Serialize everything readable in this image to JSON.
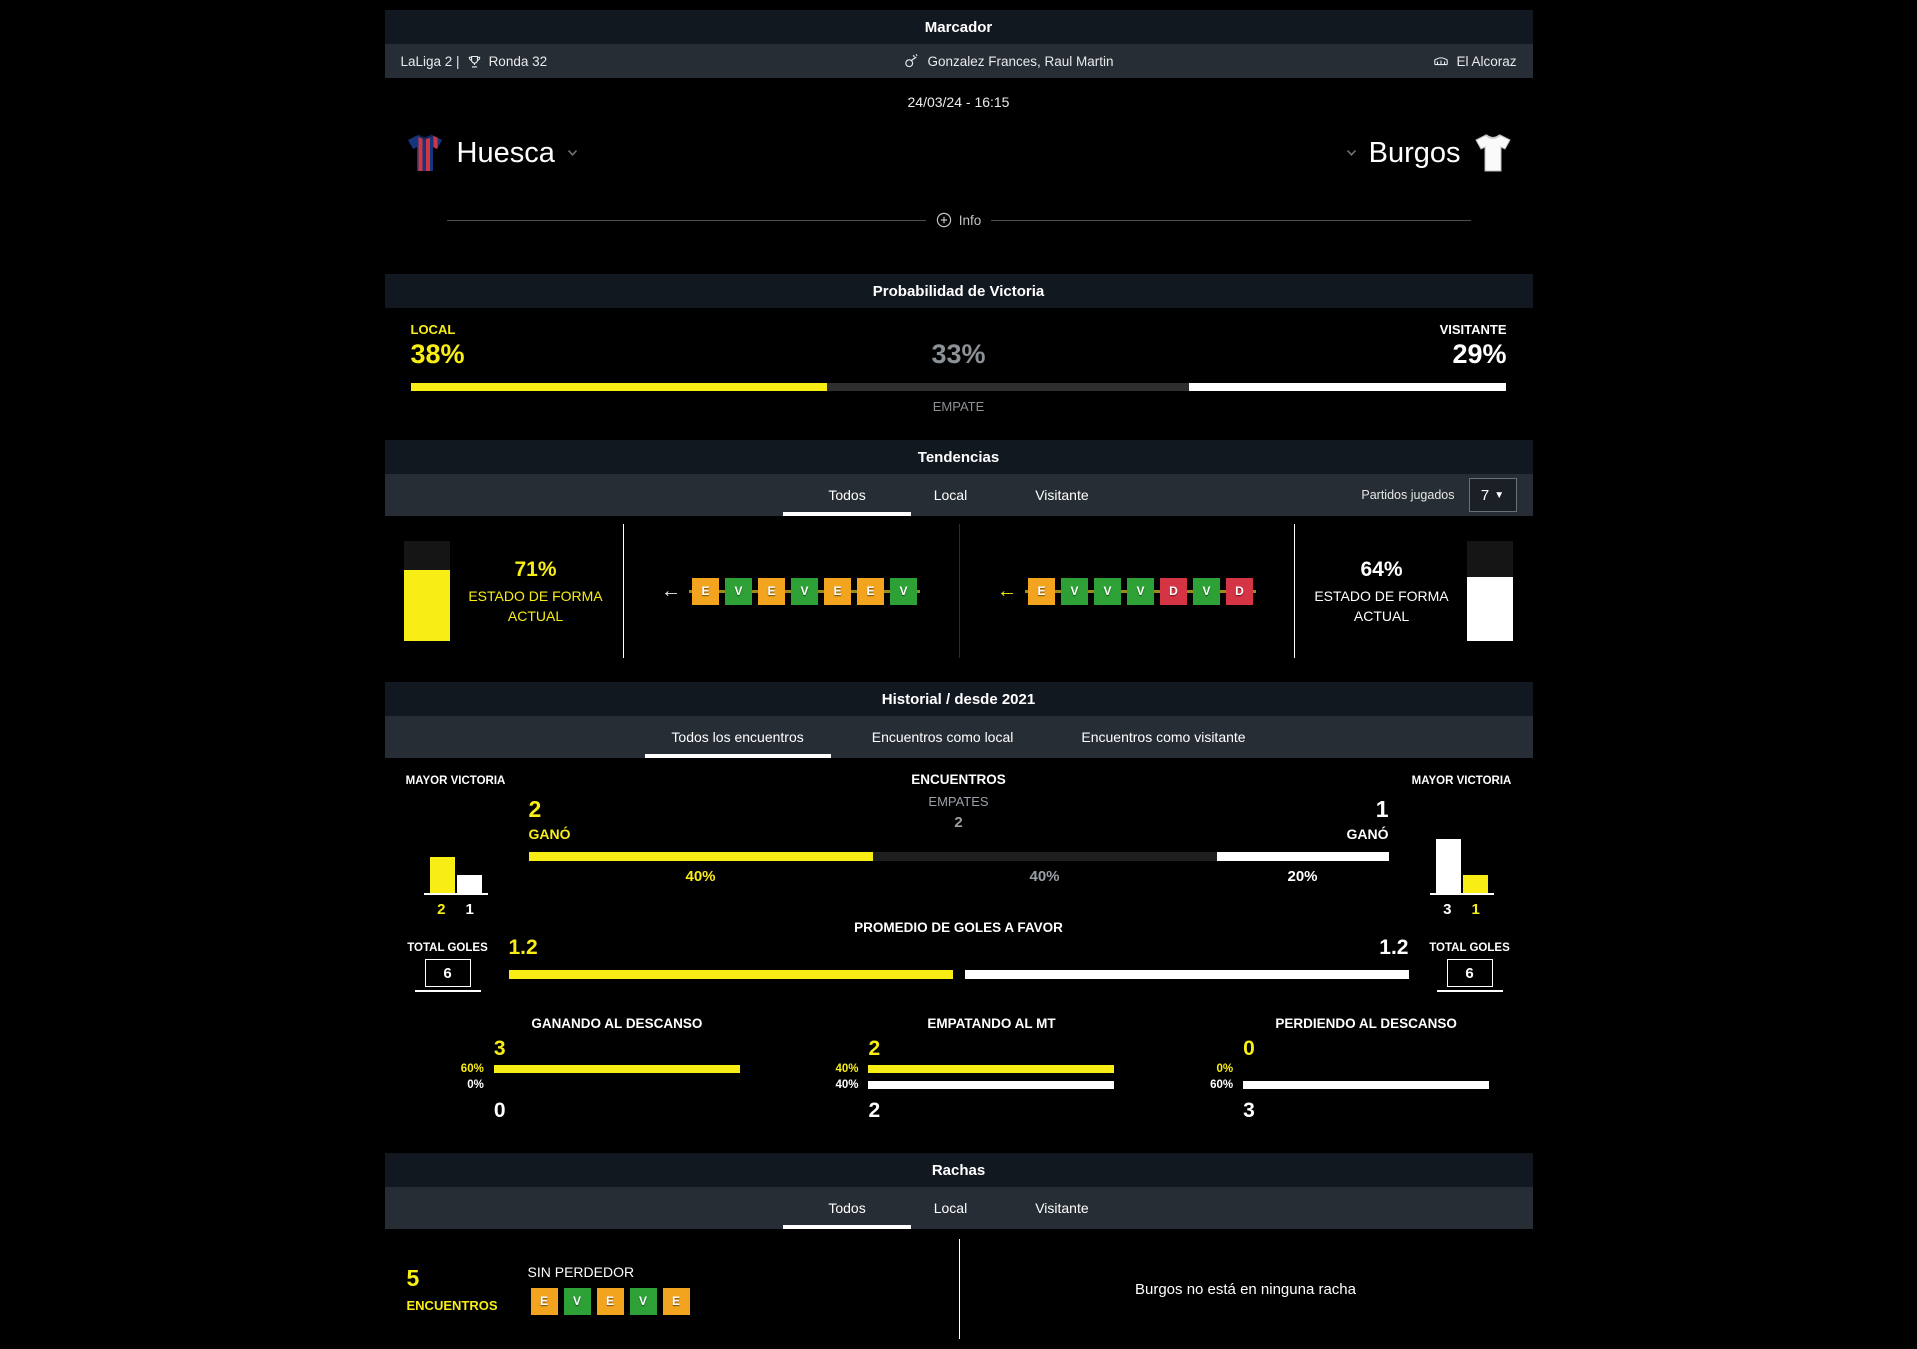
{
  "colors": {
    "accent_yellow": "#f8ee16",
    "win_green": "#2da135",
    "draw_orange": "#f2a41f",
    "loss_red": "#d43444",
    "header_bg": "#121820",
    "row_bg": "#272d35"
  },
  "marcador": {
    "title": "Marcador",
    "league": "LaLiga 2 |",
    "round": "Ronda 32",
    "referee": "Gonzalez Frances, Raul Martin",
    "venue": "El Alcoraz",
    "datetime": "24/03/24 - 16:15",
    "home_team": "Huesca",
    "away_team": "Burgos",
    "info_label": "Info"
  },
  "probability": {
    "title": "Probabilidad de Victoria",
    "local_label": "LOCAL",
    "visitor_label": "VISITANTE",
    "draw_label": "EMPATE",
    "local_pct": 38,
    "draw_pct": 33,
    "visitor_pct": 29,
    "local_pct_text": "38%",
    "draw_pct_text": "33%",
    "visitor_pct_text": "29%"
  },
  "tendencias": {
    "title": "Tendencias",
    "tabs": [
      "Todos",
      "Local",
      "Visitante"
    ],
    "active_tab": "Todos",
    "partidos_label": "Partidos jugados",
    "partidos_value": "7",
    "home_form_pct": "71%",
    "away_form_pct": "64%",
    "form_label": "ESTADO DE FORMA\nACTUAL",
    "home_gauge": 71,
    "away_gauge": 64,
    "home_sequence": [
      "E",
      "V",
      "E",
      "V",
      "E",
      "E",
      "V"
    ],
    "away_sequence": [
      "E",
      "V",
      "V",
      "V",
      "D",
      "V",
      "D"
    ]
  },
  "historial": {
    "title": "Historial / desde 2021",
    "tabs": [
      "Todos los encuentros",
      "Encuentros como local",
      "Encuentros como visitante"
    ],
    "active_tab": "Todos los encuentros",
    "mayor_victoria_label": "MAYOR\nVICTORIA",
    "home_chart": {
      "values": [
        2,
        1
      ],
      "value_texts": [
        "2",
        "1"
      ]
    },
    "away_chart": {
      "values": [
        3,
        1
      ],
      "value_texts": [
        "3",
        "1"
      ]
    },
    "encuentros_label": "ENCUENTROS",
    "empates_label": "EMPATES",
    "draws_value": "2",
    "home_won": "2",
    "away_won": "1",
    "gano_label": "GANÓ",
    "bar": {
      "local_pct": 40,
      "draw_pct": 40,
      "visitor_pct": 20,
      "local_pct_text": "40%",
      "draw_pct_text": "40%",
      "visitor_pct_text": "20%"
    },
    "promedio_label": "PROMEDIO DE GOLES A FAVOR",
    "total_goles_label": "TOTAL GOLES",
    "home_total": "6",
    "away_total": "6",
    "home_avg": "1.2",
    "away_avg": "1.2",
    "home_avg_bar_pct": 100,
    "away_avg_bar_pct": 100,
    "halftime": [
      {
        "title": "GANANDO AL DESCANSO",
        "top_value": "3",
        "bottom_value": "0",
        "yellow_pct": "60%",
        "white_pct": "0%",
        "yellow_bar_w": 100,
        "white_bar_w": 0
      },
      {
        "title": "EMPATANDO AL MT",
        "top_value": "2",
        "bottom_value": "2",
        "yellow_pct": "40%",
        "white_pct": "40%",
        "yellow_bar_w": 100,
        "white_bar_w": 100
      },
      {
        "title": "PERDIENDO AL DESCANSO",
        "top_value": "0",
        "bottom_value": "3",
        "yellow_pct": "0%",
        "white_pct": "60%",
        "yellow_bar_w": 0,
        "white_bar_w": 100
      }
    ]
  },
  "rachas": {
    "title": "Rachas",
    "tabs": [
      "Todos",
      "Local",
      "Visitante"
    ],
    "active_tab": "Todos",
    "count": "5",
    "count_label": "ENCUENTROS",
    "streak_label": "SIN PERDEDOR",
    "sequence": [
      "E",
      "V",
      "E",
      "V",
      "E"
    ],
    "away_note": "Burgos no está en ninguna racha"
  }
}
